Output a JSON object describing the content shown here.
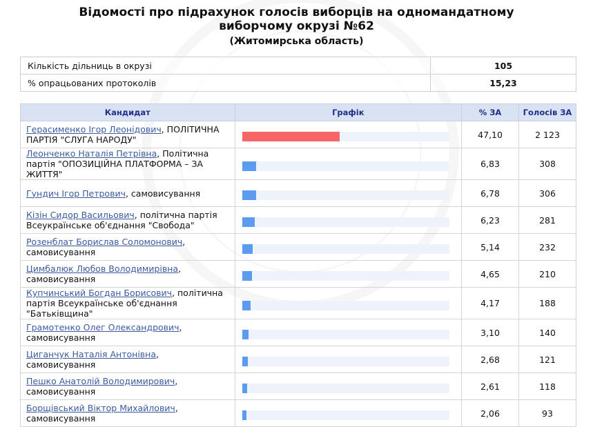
{
  "header": {
    "title_line1": "Відомості про підрахунок голосів виборців на одномандатному",
    "title_line2": "виборчому окрузі №62",
    "subtitle": "(Житомирська область)"
  },
  "summary": {
    "rows": [
      {
        "label": "Кількість дільниць в окрузі",
        "value": "105"
      },
      {
        "label": "% опрацьованих протоколів",
        "value": "15,23"
      }
    ]
  },
  "columns": {
    "candidate": "Кандидат",
    "graph": "Графік",
    "pct": "% ЗА",
    "votes": "Голосів ЗА"
  },
  "colors": {
    "leader_bar": "#f76566",
    "bar": "#5c9bef"
  },
  "candidates": [
    {
      "name": "Герасименко Ігор Леонідович",
      "party": ", ПОЛІТИЧНА ПАРТІЯ \"СЛУГА НАРОДУ\"",
      "pct": "47,10",
      "pct_value": 47.1,
      "votes": "2 123",
      "leader": true
    },
    {
      "name": "Леонченко Наталія Петрівна",
      "party": ", Політична партія \"ОПОЗИЦІЙНА ПЛАТФОРМА – ЗА ЖИТТЯ\"",
      "pct": "6,83",
      "pct_value": 6.83,
      "votes": "308",
      "leader": false
    },
    {
      "name": "Гундич Ігор Петрович",
      "party": ", самовисування",
      "pct": "6,78",
      "pct_value": 6.78,
      "votes": "306",
      "leader": false
    },
    {
      "name": "Кізін Сидор Васильович",
      "party": ", політична партія Всеукраїнське об'єднання \"Свобода\"",
      "pct": "6,23",
      "pct_value": 6.23,
      "votes": "281",
      "leader": false
    },
    {
      "name": "Розенблат Борислав Соломонович",
      "party": ", самовисування",
      "pct": "5,14",
      "pct_value": 5.14,
      "votes": "232",
      "leader": false
    },
    {
      "name": "Цимбалюк Любов Володимирівна",
      "party": ", самовисування",
      "pct": "4,65",
      "pct_value": 4.65,
      "votes": "210",
      "leader": false
    },
    {
      "name": "Купчинський Богдан Борисович",
      "party": ", політична партія Всеукраїнське об'єднання \"Батьківщина\"",
      "pct": "4,17",
      "pct_value": 4.17,
      "votes": "188",
      "leader": false
    },
    {
      "name": "Грамотенко Олег Олександрович",
      "party": ", самовисування",
      "pct": "3,10",
      "pct_value": 3.1,
      "votes": "140",
      "leader": false
    },
    {
      "name": "Циганчук Наталія Антонівна",
      "party": ", самовисування",
      "pct": "2,68",
      "pct_value": 2.68,
      "votes": "121",
      "leader": false
    },
    {
      "name": "Пешко Анатолій Володимирович",
      "party": ", самовисування",
      "pct": "2,61",
      "pct_value": 2.61,
      "votes": "118",
      "leader": false
    },
    {
      "name": "Борщівський Віктор Михайлович",
      "party": ", самовисування",
      "pct": "2,06",
      "pct_value": 2.06,
      "votes": "93",
      "leader": false
    }
  ]
}
